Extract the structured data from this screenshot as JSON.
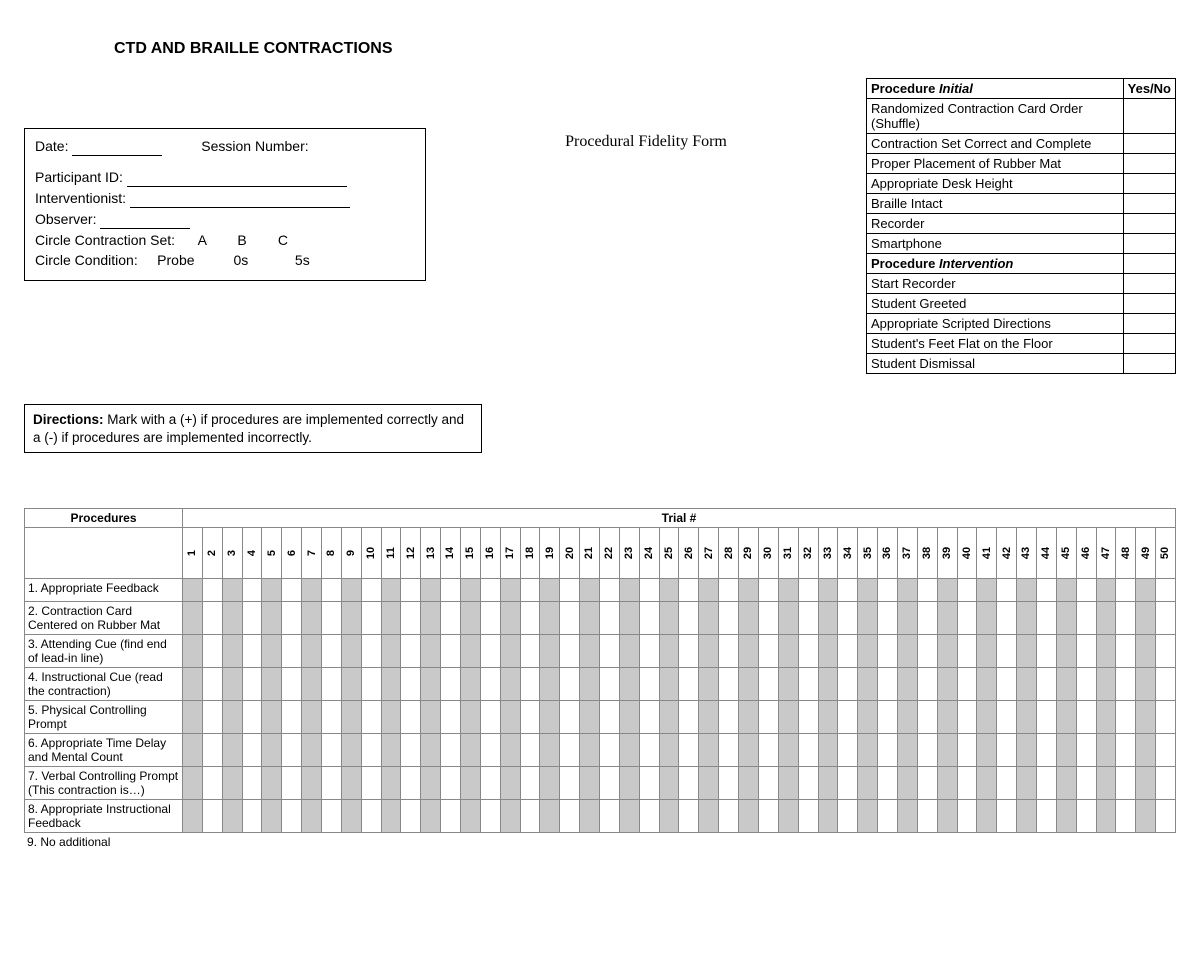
{
  "title": "CTD AND BRAILLE CONTRACTIONS",
  "subtitle": "Procedural Fidelity Form",
  "info_box": {
    "date_label": "Date:",
    "session_label": "Session Number:",
    "participant_label": "Participant ID:",
    "interventionist_label": "Interventionist:",
    "observer_label": "Observer:",
    "circle_set_label": "Circle Contraction Set:",
    "set_options": [
      "A",
      "B",
      "C"
    ],
    "circle_condition_label": "Circle Condition:",
    "condition_options": [
      "Probe",
      "0s",
      "5s"
    ]
  },
  "checklist": {
    "header_procedure": "Procedure",
    "header_initial": "Initial",
    "header_intervention": "Intervention",
    "header_yn": "Yes/No",
    "initial_items": [
      "Randomized Contraction Card Order (Shuffle)",
      "Contraction Set Correct and Complete",
      "Proper Placement of Rubber Mat",
      "Appropriate Desk Height",
      "Braille Intact",
      "Recorder",
      "Smartphone"
    ],
    "intervention_items": [
      "Start Recorder",
      "Student Greeted",
      "Appropriate Scripted Directions",
      "Student's Feet Flat on the Floor",
      "Student Dismissal"
    ]
  },
  "directions": {
    "label": "Directions:",
    "text": "Mark with a (+) if procedures are implemented correctly and a (-) if procedures are implemented incorrectly."
  },
  "trial_table": {
    "procedures_header": "Procedures",
    "trial_header": "Trial #",
    "trial_count": 50,
    "procedures": [
      "1. Appropriate Feedback",
      "2. Contraction Card Centered on Rubber Mat",
      "3. Attending Cue (find end of lead-in line)",
      "4. Instructional Cue (read the contraction)",
      "5. Physical Controlling Prompt",
      "6. Appropriate Time Delay and Mental Count",
      "7. Verbal Controlling Prompt (This contraction is…)",
      "8. Appropriate Instructional Feedback"
    ],
    "cutoff_row": "9. No additional"
  },
  "styling": {
    "shade_grey": "#c9c9c9",
    "border_grey": "#888888",
    "font_family": "Arial"
  }
}
